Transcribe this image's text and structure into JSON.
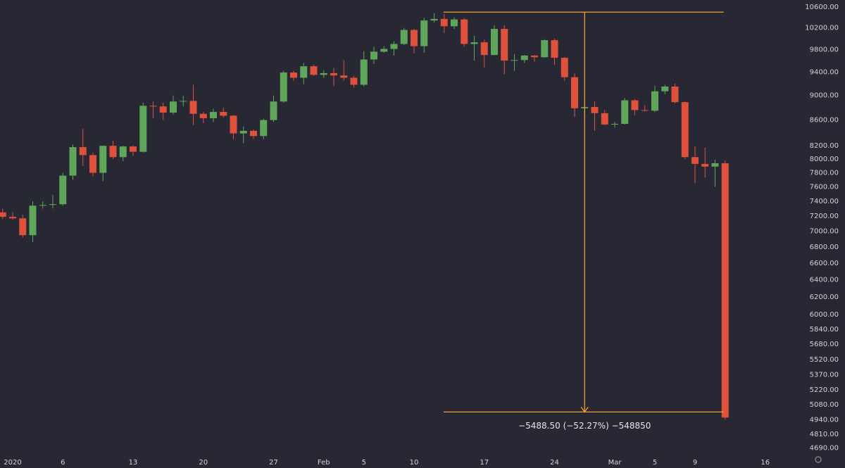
{
  "chart_data": {
    "type": "candlestick",
    "log_scale": true,
    "grid": false,
    "up_color": "#5fa65a",
    "down_color": "#e0513c",
    "categories": [
      null,
      "2020",
      null,
      null,
      null,
      null,
      "6",
      null,
      null,
      null,
      null,
      null,
      null,
      "13",
      null,
      null,
      null,
      null,
      null,
      null,
      "20",
      null,
      null,
      null,
      null,
      null,
      null,
      "27",
      null,
      null,
      null,
      null,
      "Feb",
      null,
      null,
      null,
      "5",
      null,
      null,
      null,
      null,
      "10",
      null,
      null,
      null,
      null,
      null,
      null,
      "17",
      null,
      null,
      null,
      null,
      null,
      null,
      "24",
      null,
      null,
      null,
      null,
      null,
      "Mar",
      null,
      null,
      null,
      "5",
      null,
      null,
      null,
      "9",
      null,
      null,
      null,
      null,
      null,
      null,
      "16"
    ],
    "open": [
      7250,
      7190,
      7170,
      6950,
      7340,
      7350,
      7360,
      7760,
      8180,
      8060,
      7800,
      8200,
      8030,
      8190,
      8110,
      8830,
      8820,
      8720,
      8900,
      8910,
      8700,
      8630,
      8730,
      8670,
      8390,
      8430,
      8350,
      8600,
      8900,
      9390,
      9300,
      9500,
      9350,
      9380,
      9340,
      9300,
      9180,
      9620,
      9760,
      9810,
      9900,
      10160,
      9860,
      10340,
      10370,
      10230,
      10360,
      9900,
      9930,
      9700,
      10180,
      9600,
      9610,
      9690,
      9660,
      9970,
      9650,
      9310,
      8790,
      8810,
      8710,
      8530,
      8540,
      8920,
      8760,
      8750,
      9070,
      9150,
      8890,
      8030,
      7930,
      7890,
      7940,
      null,
      null,
      null,
      null
    ],
    "high": [
      7300,
      7250,
      7220,
      7400,
      7400,
      7490,
      7800,
      8220,
      8460,
      8100,
      8200,
      8280,
      8200,
      8200,
      8880,
      8900,
      8880,
      9000,
      9000,
      9180,
      8730,
      8780,
      8800,
      8680,
      8500,
      8450,
      8620,
      9000,
      9420,
      9420,
      9560,
      9530,
      9430,
      9470,
      9610,
      9330,
      9770,
      9850,
      9860,
      9950,
      10200,
      10180,
      10390,
      10480,
      10460,
      10400,
      10380,
      10050,
      9980,
      10250,
      10250,
      9720,
      9700,
      9700,
      9990,
      10000,
      9660,
      9380,
      8980,
      8900,
      8760,
      8570,
      8960,
      8940,
      8840,
      9160,
      9180,
      9200,
      8900,
      8190,
      8170,
      7990,
      7980,
      null,
      null,
      null,
      null
    ],
    "low": [
      7160,
      7150,
      6920,
      6860,
      7300,
      7300,
      7340,
      7700,
      7900,
      7750,
      7680,
      8000,
      7970,
      8050,
      8100,
      8630,
      8600,
      8690,
      8820,
      8520,
      8550,
      8570,
      8640,
      8300,
      8240,
      8300,
      8300,
      8570,
      8880,
      9250,
      9190,
      9330,
      9300,
      9160,
      9250,
      9130,
      9150,
      9540,
      9740,
      9690,
      9880,
      9730,
      9740,
      10300,
      10100,
      10180,
      9850,
      9600,
      9480,
      9700,
      9360,
      9420,
      9560,
      9580,
      9650,
      9520,
      9250,
      8650,
      8550,
      8430,
      8520,
      8480,
      8530,
      8680,
      8740,
      8730,
      9020,
      8870,
      8000,
      7650,
      7730,
      7600,
      4940,
      null,
      null,
      null,
      null
    ],
    "close": [
      7190,
      7170,
      6950,
      7340,
      7350,
      7360,
      7760,
      8180,
      8060,
      7800,
      8200,
      8030,
      8190,
      8110,
      8830,
      8820,
      8720,
      8900,
      8910,
      8700,
      8630,
      8730,
      8670,
      8390,
      8430,
      8350,
      8600,
      8900,
      9390,
      9300,
      9500,
      9350,
      9380,
      9340,
      9300,
      9180,
      9620,
      9760,
      9810,
      9900,
      10160,
      9860,
      10340,
      10370,
      10230,
      10360,
      9900,
      9930,
      9700,
      10180,
      9600,
      9610,
      9690,
      9660,
      9970,
      9650,
      9310,
      8790,
      8810,
      8710,
      8530,
      8540,
      8920,
      8760,
      8750,
      9070,
      9150,
      8890,
      8030,
      7930,
      7890,
      7940,
      4960,
      null,
      null,
      null,
      null
    ],
    "ylim": [
      4637,
      10739
    ],
    "yticks": [
      {
        "value": 10600,
        "label": "10600.00"
      },
      {
        "value": 10200,
        "label": "10200.00"
      },
      {
        "value": 9800,
        "label": "9800.00"
      },
      {
        "value": 9400,
        "label": "9400.00"
      },
      {
        "value": 9000,
        "label": "9000.00"
      },
      {
        "value": 8600,
        "label": "8600.00"
      },
      {
        "value": 8200,
        "label": "8200.00"
      },
      {
        "value": 8000,
        "label": "8000.00"
      },
      {
        "value": 7800,
        "label": "7800.00"
      },
      {
        "value": 7600,
        "label": "7600.00"
      },
      {
        "value": 7400,
        "label": "7400.00"
      },
      {
        "value": 7200,
        "label": "7200.00"
      },
      {
        "value": 7000,
        "label": "7000.00"
      },
      {
        "value": 6800,
        "label": "6800.00"
      },
      {
        "value": 6600,
        "label": "6600.00"
      },
      {
        "value": 6400,
        "label": "6400.00"
      },
      {
        "value": 6200,
        "label": "6200.00"
      },
      {
        "value": 6000,
        "label": "6000.00"
      },
      {
        "value": 5840,
        "label": "5840.00"
      },
      {
        "value": 5680,
        "label": "5680.00"
      },
      {
        "value": 5520,
        "label": "5520.00"
      },
      {
        "value": 5370,
        "label": "5370.00"
      },
      {
        "value": 5220,
        "label": "5220.00"
      },
      {
        "value": 5080,
        "label": "5080.00"
      },
      {
        "value": 4940,
        "label": "4940.00"
      },
      {
        "value": 4810,
        "label": "4810.00"
      },
      {
        "value": 4690,
        "label": "4690.00"
      }
    ],
    "measure": {
      "from": 10500,
      "to": 5011.5,
      "color": "#f0a030",
      "text": "−5488.50 (−52.27%) −548850"
    }
  }
}
